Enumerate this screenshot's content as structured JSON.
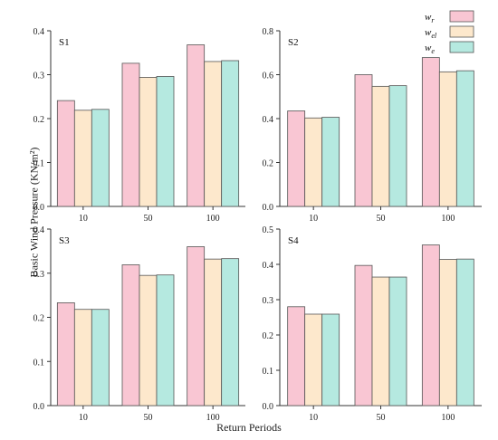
{
  "figure": {
    "ylabel": "Basic Wind Pressure (KN/m²)",
    "xlabel": "Return Periods"
  },
  "legend": {
    "placement": "top-right",
    "entries": [
      {
        "base": "w",
        "sub": "r",
        "color": "#f9c6d3"
      },
      {
        "base": "w",
        "sub": "el",
        "color": "#fde8cc"
      },
      {
        "base": "w",
        "sub": "e",
        "color": "#b5e9e0"
      }
    ]
  },
  "colors": {
    "edge": "#555555",
    "axis": "#333333"
  },
  "chart_data": [
    {
      "type": "bar",
      "title": "S1",
      "categories": [
        "10",
        "50",
        "100"
      ],
      "ylim": [
        0,
        0.4
      ],
      "yticks": [
        "0.0",
        "0.1",
        "0.2",
        "0.3",
        "0.4"
      ],
      "series": [
        {
          "name": "w_r",
          "values": [
            0.241,
            0.326,
            0.368
          ]
        },
        {
          "name": "w_el",
          "values": [
            0.219,
            0.294,
            0.33
          ]
        },
        {
          "name": "w_e",
          "values": [
            0.221,
            0.296,
            0.332
          ]
        }
      ]
    },
    {
      "type": "bar",
      "title": "S2",
      "categories": [
        "10",
        "50",
        "100"
      ],
      "ylim": [
        0,
        0.8
      ],
      "yticks": [
        "0.0",
        "0.2",
        "0.4",
        "0.6",
        "0.8"
      ],
      "series": [
        {
          "name": "w_r",
          "values": [
            0.435,
            0.6,
            0.678
          ]
        },
        {
          "name": "w_el",
          "values": [
            0.403,
            0.547,
            0.613
          ]
        },
        {
          "name": "w_e",
          "values": [
            0.406,
            0.55,
            0.618
          ]
        }
      ]
    },
    {
      "type": "bar",
      "title": "S3",
      "categories": [
        "10",
        "50",
        "100"
      ],
      "ylim": [
        0,
        0.4
      ],
      "yticks": [
        "0.0",
        "0.1",
        "0.2",
        "0.3",
        "0.4"
      ],
      "series": [
        {
          "name": "w_r",
          "values": [
            0.233,
            0.319,
            0.36
          ]
        },
        {
          "name": "w_el",
          "values": [
            0.218,
            0.295,
            0.332
          ]
        },
        {
          "name": "w_e",
          "values": [
            0.218,
            0.296,
            0.333
          ]
        }
      ]
    },
    {
      "type": "bar",
      "title": "S4",
      "categories": [
        "10",
        "50",
        "100"
      ],
      "ylim": [
        0,
        0.5
      ],
      "yticks": [
        "0.0",
        "0.1",
        "0.2",
        "0.3",
        "0.4",
        "0.5"
      ],
      "series": [
        {
          "name": "w_r",
          "values": [
            0.28,
            0.397,
            0.455
          ]
        },
        {
          "name": "w_el",
          "values": [
            0.259,
            0.364,
            0.414
          ]
        },
        {
          "name": "w_e",
          "values": [
            0.259,
            0.364,
            0.415
          ]
        }
      ]
    }
  ]
}
